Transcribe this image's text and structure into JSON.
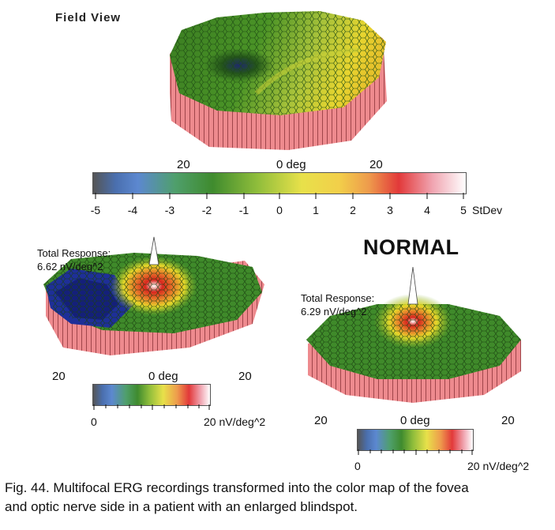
{
  "field_view": {
    "title": "Field View",
    "x_axis": {
      "left": "20",
      "center": "0 deg",
      "right": "20"
    },
    "scale": {
      "labels": [
        "-5",
        "-4",
        "-3",
        "-2",
        "-1",
        "0",
        "1",
        "2",
        "3",
        "4",
        "5"
      ],
      "unit": "StDev"
    }
  },
  "patient_plot": {
    "total_response_label": "Total Response:",
    "total_response_value": "6.62 nV/deg^2",
    "x_axis": {
      "left": "20",
      "center": "0 deg",
      "right": "20"
    },
    "scale": {
      "min": "0",
      "max": "20 nV/deg^2"
    }
  },
  "normal_plot": {
    "heading": "NORMAL",
    "total_response_label": "Total Response:",
    "total_response_value": "6.29 nV/deg^2",
    "x_axis": {
      "left": "20",
      "center": "0 deg",
      "right": "20"
    },
    "scale": {
      "min": "0",
      "max": "20 nV/deg^2"
    }
  },
  "caption": {
    "line1": "Fig. 44. Multifocal ERG recordings transformed into the color map of the fovea",
    "line2": "and optic nerve side in a patient with an enlarged blindspot."
  },
  "colors": {
    "base_wall": "#ee8a8e",
    "surface_green": "#3f8a2a",
    "surface_dark_green": "#2c6a1d",
    "yellow": "#e6d82a",
    "red": "#d8261e",
    "blue": "#1f2fa0",
    "peak": "#ffffff"
  }
}
